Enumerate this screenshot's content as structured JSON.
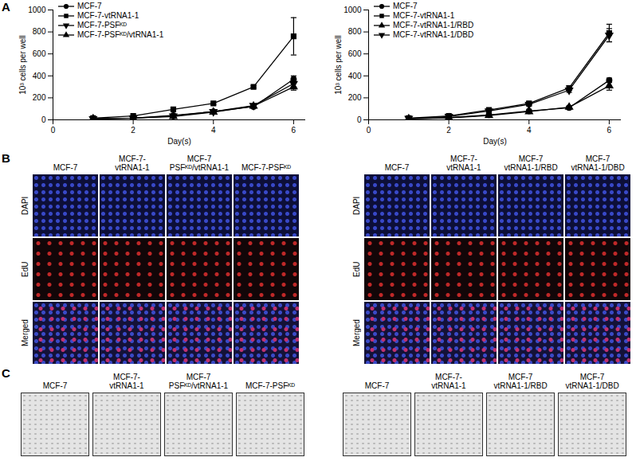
{
  "panel_labels": [
    "A",
    "B",
    "C"
  ],
  "chart_data": [
    {
      "type": "line",
      "x": [
        1,
        2,
        3,
        4,
        5,
        6
      ],
      "xlim": [
        0,
        6.3
      ],
      "xticks": [
        0,
        2,
        4,
        6
      ],
      "ylim": [
        0,
        1000
      ],
      "yticks": [
        0,
        200,
        400,
        600,
        800,
        1000
      ],
      "x_label": "Day(s)",
      "y_label": "10³ cells per well",
      "legend": "top-left",
      "series": [
        {
          "name": "MCF-7",
          "color": "#000000",
          "marker": "circle",
          "values": [
            10,
            15,
            40,
            75,
            120,
            370
          ],
          "errors": [
            2,
            3,
            5,
            8,
            10,
            30
          ]
        },
        {
          "name": "MCF-7-vtRNA1-1",
          "color": "#000000",
          "marker": "square",
          "values": [
            15,
            35,
            95,
            150,
            300,
            760
          ],
          "errors": [
            3,
            5,
            15,
            10,
            10,
            170
          ]
        },
        {
          "name": "MCF-7-PSFᴷᴰ",
          "color": "#000000",
          "marker": "triangle-down",
          "values": [
            10,
            15,
            35,
            75,
            130,
            330
          ],
          "errors": [
            2,
            3,
            5,
            8,
            10,
            30
          ]
        },
        {
          "name": "MCF-7-PSFᴷᴰ/vtRNA1-1",
          "color": "#000000",
          "marker": "triangle-up",
          "values": [
            10,
            15,
            30,
            70,
            125,
            300
          ],
          "errors": [
            2,
            3,
            5,
            8,
            10,
            30
          ]
        }
      ]
    },
    {
      "type": "line",
      "x": [
        1,
        2,
        3,
        4,
        5,
        6
      ],
      "xlim": [
        0,
        6.3
      ],
      "xticks": [
        0,
        2,
        4,
        6
      ],
      "ylim": [
        0,
        1000
      ],
      "yticks": [
        0,
        200,
        400,
        600,
        800,
        1000
      ],
      "x_label": "Day(s)",
      "y_label": "10³ cells per well",
      "legend": "top-left",
      "series": [
        {
          "name": "MCF-7",
          "color": "#000000",
          "marker": "circle",
          "values": [
            10,
            20,
            45,
            80,
            110,
            360
          ],
          "errors": [
            2,
            3,
            5,
            8,
            10,
            20
          ]
        },
        {
          "name": "MCF-7-vtRNA1-1",
          "color": "#000000",
          "marker": "square",
          "values": [
            15,
            35,
            90,
            150,
            290,
            790
          ],
          "errors": [
            3,
            5,
            10,
            15,
            20,
            80
          ]
        },
        {
          "name": "MCF-7-vtRNA1-1/RBD",
          "color": "#000000",
          "marker": "triangle-up",
          "values": [
            10,
            18,
            40,
            75,
            115,
            310
          ],
          "errors": [
            2,
            3,
            5,
            8,
            10,
            40
          ]
        },
        {
          "name": "MCF-7-vtRNA1-1/DBD",
          "color": "#000000",
          "marker": "triangle-down",
          "values": [
            12,
            30,
            80,
            140,
            270,
            770
          ],
          "errors": [
            3,
            5,
            10,
            15,
            20,
            60
          ]
        }
      ]
    }
  ],
  "panel_b": [
    {
      "rows": [
        "DAPI",
        "EdU",
        "Merged"
      ],
      "columns": [
        "MCF-7",
        "MCF-7-\nvtRNA1-1",
        "MCF-7\nPSFᴷᴰ/vtRNA1-1",
        "MCF-7-PSFᴷᴰ"
      ]
    },
    {
      "rows": [
        "DAPI",
        "EdU",
        "Merged"
      ],
      "columns": [
        "MCF-7",
        "MCF-7-\nvtRNA1-1",
        "MCF-7\nvtRNA1-1/RBD",
        "MCF-7\nvtRNA1-1/DBD"
      ]
    }
  ],
  "panel_c": [
    {
      "columns": [
        "MCF-7",
        "MCF-7-\nvtRNA1-1",
        "MCF-7\nPSFᴷᴰ/vtRNA1-1",
        "MCF-7-PSFᴷᴰ"
      ]
    },
    {
      "columns": [
        "MCF-7",
        "MCF-7-\nvtRNA1-1",
        "MCF-7\nvtRNA1-1/RBD",
        "MCF-7\nvtRNA1-1/DBD"
      ]
    }
  ]
}
